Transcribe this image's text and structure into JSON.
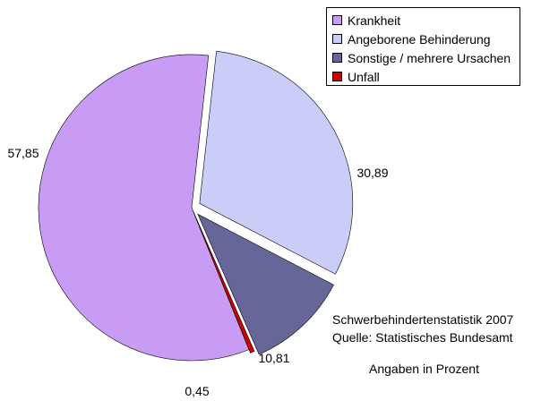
{
  "chart_data": {
    "type": "pie",
    "categories": [
      "Krankheit",
      "Angeborene Behinderung",
      "Sonstige / mehrere Ursachen",
      "Unfall"
    ],
    "values": [
      57.85,
      30.89,
      10.81,
      0.45
    ],
    "value_labels": [
      "57,85",
      "30,89",
      "10,81",
      "0,45"
    ],
    "colors": [
      "#c89bf5",
      "#c9cdf8",
      "#666699",
      "#cc0000"
    ],
    "exploded": true,
    "legend_position": "top-right",
    "legend": [
      {
        "label": "Krankheit",
        "color": "#c89bf5"
      },
      {
        "label": "Angeborene Behinderung",
        "color": "#c9cdf8"
      },
      {
        "label": "Sonstige / mehrere Ursachen",
        "color": "#666699"
      },
      {
        "label": "Unfall",
        "color": "#cc0000"
      }
    ]
  },
  "notes": {
    "source_line1": "Schwerbehindertenstatistik 2007",
    "source_line2": "Quelle: Statistisches Bundesamt",
    "units": "Angaben in Prozent"
  }
}
